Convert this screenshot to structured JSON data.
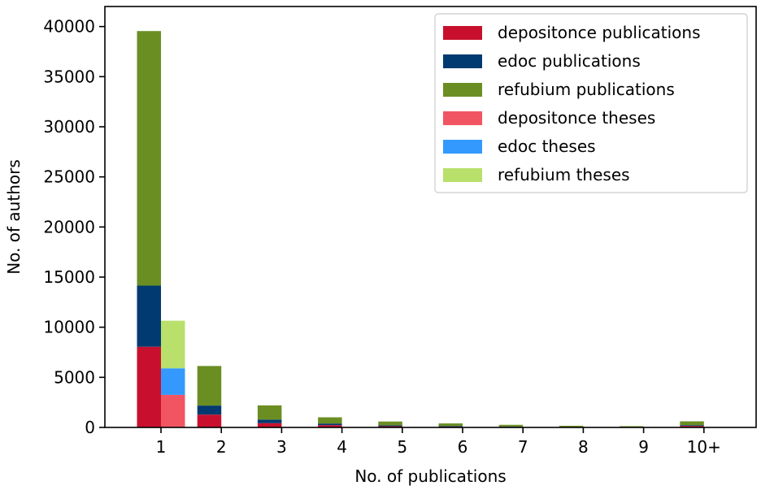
{
  "chart_data": {
    "type": "bar",
    "stacked": true,
    "grouped": true,
    "categories": [
      "1",
      "2",
      "3",
      "4",
      "5",
      "6",
      "7",
      "8",
      "9",
      "10+"
    ],
    "xlabel": "No. of publications",
    "ylabel": "No. of authors",
    "ylim": [
      0,
      42000
    ],
    "yticks": [
      0,
      5000,
      10000,
      15000,
      20000,
      25000,
      30000,
      35000,
      40000
    ],
    "grid": false,
    "legend_position": "top-right",
    "groups": [
      {
        "group": "publications",
        "series": [
          {
            "name": "depositonce publications",
            "color": "#c8102e",
            "values": [
              8050,
              1280,
              430,
              230,
              120,
              80,
              50,
              30,
              25,
              150
            ]
          },
          {
            "name": "edoc publications",
            "color": "#003a70",
            "values": [
              6100,
              900,
              350,
              160,
              90,
              60,
              40,
              25,
              20,
              80
            ]
          },
          {
            "name": "refubium publications",
            "color": "#6b8e23",
            "values": [
              25400,
              3950,
              1420,
              620,
              380,
              260,
              170,
              110,
              80,
              380
            ]
          }
        ]
      },
      {
        "group": "theses",
        "series": [
          {
            "name": "depositonce theses",
            "color": "#f25562",
            "values": [
              3250,
              0,
              0,
              0,
              0,
              0,
              0,
              0,
              0,
              0
            ]
          },
          {
            "name": "edoc theses",
            "color": "#3399ff",
            "values": [
              2650,
              0,
              0,
              0,
              0,
              0,
              0,
              0,
              0,
              0
            ]
          },
          {
            "name": "refubium theses",
            "color": "#b9e06b",
            "values": [
              4750,
              0,
              0,
              0,
              0,
              0,
              0,
              0,
              0,
              0
            ]
          }
        ]
      }
    ]
  }
}
